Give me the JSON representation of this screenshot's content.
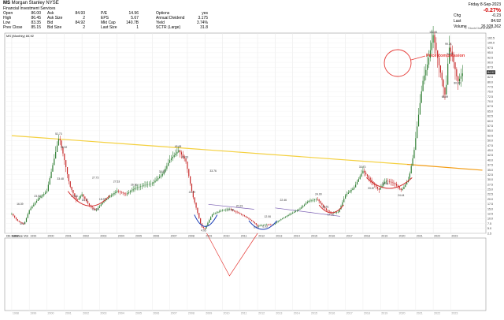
{
  "header": {
    "symbol": "MS",
    "company": "Morgan Stanley",
    "exchange": "NYSE",
    "sector": "Financial Investment Services",
    "col1": [
      [
        "Open",
        "86.00"
      ],
      [
        "High",
        "86.45"
      ],
      [
        "Low",
        "83.35"
      ],
      [
        "Prev Close",
        "85.15"
      ]
    ],
    "col2": [
      [
        "Ask",
        "84.93"
      ],
      [
        "Ask Size",
        "2"
      ],
      [
        "Bid",
        "84.92"
      ],
      [
        "Bid Size",
        "2"
      ]
    ],
    "col3": [
      [
        "P/E",
        "14.96"
      ],
      [
        "EPS",
        "5.67"
      ],
      [
        "Mkt Cap",
        "140.7B"
      ],
      [
        "Last Size",
        "1"
      ]
    ],
    "col4": [
      [
        "Options",
        "yes"
      ],
      [
        "Annual Dividend",
        "3.175"
      ],
      [
        "Yield",
        "3.74%"
      ],
      [
        "SCTR (Large)",
        "31.8"
      ]
    ],
    "date": "Friday 8-Sep-2023",
    "change_pct": "-0.27%",
    "chg_label": "Chg",
    "chg_value": "-0.23",
    "last_label": "Last",
    "last_value": "84.92",
    "volume_label": "Volume",
    "volume_value": "26,928,262",
    "credit": "© StockCharts.com"
  },
  "legend": {
    "price": "MS (Monthly) 84.92",
    "obv": "On Balance Vol"
  },
  "annotation": {
    "price_compression": "Price compression"
  },
  "colors": {
    "up": "#2e7d32",
    "down": "#c62828",
    "trend": "#f4d03f",
    "trend2": "#f39c12",
    "annot": "#e53935",
    "cup": "#d32f2f",
    "cupblue": "#1a3cb5",
    "channel": "#7b5fb3"
  },
  "chart_data": {
    "type": "line",
    "title": "MS (Monthly) 84.92",
    "x": [
      1998,
      1999,
      2000,
      2001,
      2002,
      2003,
      2004,
      2005,
      2006,
      2007,
      2008,
      2009,
      2010,
      2011,
      2012,
      2013,
      2014,
      2015,
      2016,
      2017,
      2018,
      2019,
      2020,
      2021,
      2022,
      2023
    ],
    "y_ticks": [
      2.5,
      5.0,
      7.5,
      10.0,
      12.5,
      15.0,
      17.5,
      20.0,
      22.5,
      25.0,
      27.5,
      30.0,
      32.5,
      35.0,
      37.5,
      40.0,
      42.5,
      45.0,
      47.5,
      50.0,
      52.5,
      55.0,
      57.5,
      60.0,
      62.5,
      65.0,
      67.5,
      70.0,
      72.5,
      75.0,
      77.5,
      80.0,
      82.5,
      85.0,
      87.5,
      90.0,
      92.5,
      95.0,
      97.5,
      100.0,
      102.5
    ],
    "ylim": [
      0,
      102.5
    ],
    "series": [
      {
        "name": "MS",
        "points": [
          [
            1998.0,
            12.5
          ],
          [
            1998.3,
            9.2
          ],
          [
            1998.7,
            7.0
          ],
          [
            1999.0,
            14.3
          ],
          [
            1999.5,
            20.0
          ],
          [
            2000.0,
            24.0
          ],
          [
            2000.7,
            52.1
          ],
          [
            2001.0,
            40.0
          ],
          [
            2001.3,
            27.0
          ],
          [
            2001.7,
            19.0
          ],
          [
            2002.0,
            22.5
          ],
          [
            2002.4,
            17.0
          ],
          [
            2002.8,
            14.2
          ],
          [
            2003.2,
            18.5
          ],
          [
            2003.6,
            21.4
          ],
          [
            2004.0,
            24.3
          ],
          [
            2004.5,
            22.5
          ],
          [
            2005.0,
            25.5
          ],
          [
            2005.6,
            27.3
          ],
          [
            2006.0,
            28.0
          ],
          [
            2006.6,
            32.9
          ],
          [
            2007.0,
            40.0
          ],
          [
            2007.5,
            45.0
          ],
          [
            2007.9,
            40.0
          ],
          [
            2008.3,
            22.0
          ],
          [
            2008.8,
            6.0
          ],
          [
            2009.0,
            4.9
          ],
          [
            2009.4,
            12.0
          ],
          [
            2009.9,
            14.0
          ],
          [
            2010.4,
            15.0
          ],
          [
            2010.9,
            13.0
          ],
          [
            2011.4,
            10.6
          ],
          [
            2011.8,
            8.0
          ],
          [
            2012.0,
            6.3
          ],
          [
            2012.5,
            7.0
          ],
          [
            2012.9,
            6.9
          ],
          [
            2013.3,
            9.5
          ],
          [
            2013.8,
            12.0
          ],
          [
            2014.4,
            15.0
          ],
          [
            2014.9,
            19.0
          ],
          [
            2015.4,
            20.0
          ],
          [
            2015.9,
            14.6
          ],
          [
            2016.2,
            13.0
          ],
          [
            2016.6,
            13.3
          ],
          [
            2017.0,
            22.0
          ],
          [
            2017.5,
            26.0
          ],
          [
            2018.0,
            34.5
          ],
          [
            2018.5,
            29.0
          ],
          [
            2018.9,
            24.6
          ],
          [
            2019.3,
            29.5
          ],
          [
            2019.8,
            28.0
          ],
          [
            2020.2,
            24.4
          ],
          [
            2020.6,
            30.0
          ],
          [
            2020.9,
            44.0
          ],
          [
            2021.4,
            80.0
          ],
          [
            2021.7,
            90.0
          ],
          [
            2022.0,
            104.0
          ],
          [
            2022.3,
            90.0
          ],
          [
            2022.7,
            72.0
          ],
          [
            2022.9,
            98.0
          ],
          [
            2023.1,
            93.0
          ],
          [
            2023.4,
            80.0
          ],
          [
            2023.7,
            84.92
          ]
        ]
      }
    ],
    "labels": [
      {
        "x": 1998.7,
        "y": 7.0,
        "text": "6.07"
      },
      {
        "x": 1998.5,
        "y": 17.0,
        "text": "16.39"
      },
      {
        "x": 1999.5,
        "y": 21.0,
        "text": "23.50"
      },
      {
        "x": 2000.7,
        "y": 53.0,
        "text": "52.73"
      },
      {
        "x": 2001.0,
        "y": 46.0,
        "text": "45.92"
      },
      {
        "x": 2000.8,
        "y": 30.0,
        "text": "33.48"
      },
      {
        "x": 2001.6,
        "y": 21.0,
        "text": "22.68"
      },
      {
        "x": 2002.2,
        "y": 19.0,
        "text": "15.72"
      },
      {
        "x": 2002.8,
        "y": 14.2,
        "text": "14.23"
      },
      {
        "x": 2002.8,
        "y": 30.5,
        "text": "27.73"
      },
      {
        "x": 2003.2,
        "y": 19.5,
        "text": "18.37"
      },
      {
        "x": 2004.0,
        "y": 28.5,
        "text": "27.53"
      },
      {
        "x": 2005.0,
        "y": 27.0,
        "text": "26.60"
      },
      {
        "x": 2006.6,
        "y": 33.5,
        "text": "32.87"
      },
      {
        "x": 2007.5,
        "y": 46.5,
        "text": "45.68"
      },
      {
        "x": 2007.9,
        "y": 41.0,
        "text": "41.83"
      },
      {
        "x": 2008.3,
        "y": 23.0,
        "text": "22.29"
      },
      {
        "x": 2009.0,
        "y": 3.5,
        "text": "4.95"
      },
      {
        "x": 2009.5,
        "y": 34.0,
        "text": "33.76"
      },
      {
        "x": 2010.5,
        "y": 14.0,
        "text": "17.35"
      },
      {
        "x": 2011.0,
        "y": 16.0,
        "text": "20.23"
      },
      {
        "x": 2012.0,
        "y": 5.2,
        "text": "6.38"
      },
      {
        "x": 2012.5,
        "y": 5.5,
        "text": "6.93"
      },
      {
        "x": 2012.6,
        "y": 10.5,
        "text": "12.06"
      },
      {
        "x": 2013.5,
        "y": 19.0,
        "text": "22.46"
      },
      {
        "x": 2015.5,
        "y": 22.0,
        "text": "24.00"
      },
      {
        "x": 2015.9,
        "y": 15.6,
        "text": "24.51"
      },
      {
        "x": 2016.2,
        "y": 11.5,
        "text": "17.20"
      },
      {
        "x": 2018.0,
        "y": 36.0,
        "text": "33.73"
      },
      {
        "x": 2018.5,
        "y": 25.0,
        "text": "33.87"
      },
      {
        "x": 2019.3,
        "y": 27.5,
        "text": "34.24"
      },
      {
        "x": 2020.2,
        "y": 21.5,
        "text": "24.44"
      },
      {
        "x": 2022.0,
        "y": 105.0,
        "text": "104.81"
      },
      {
        "x": 2022.9,
        "y": 99.0,
        "text": "99.21"
      },
      {
        "x": 2023.0,
        "y": 94.0,
        "text": "94.01"
      },
      {
        "x": 2022.7,
        "y": 72.0,
        "text": "68.89"
      },
      {
        "x": 2023.4,
        "y": 79.0,
        "text": "80.80"
      }
    ]
  }
}
